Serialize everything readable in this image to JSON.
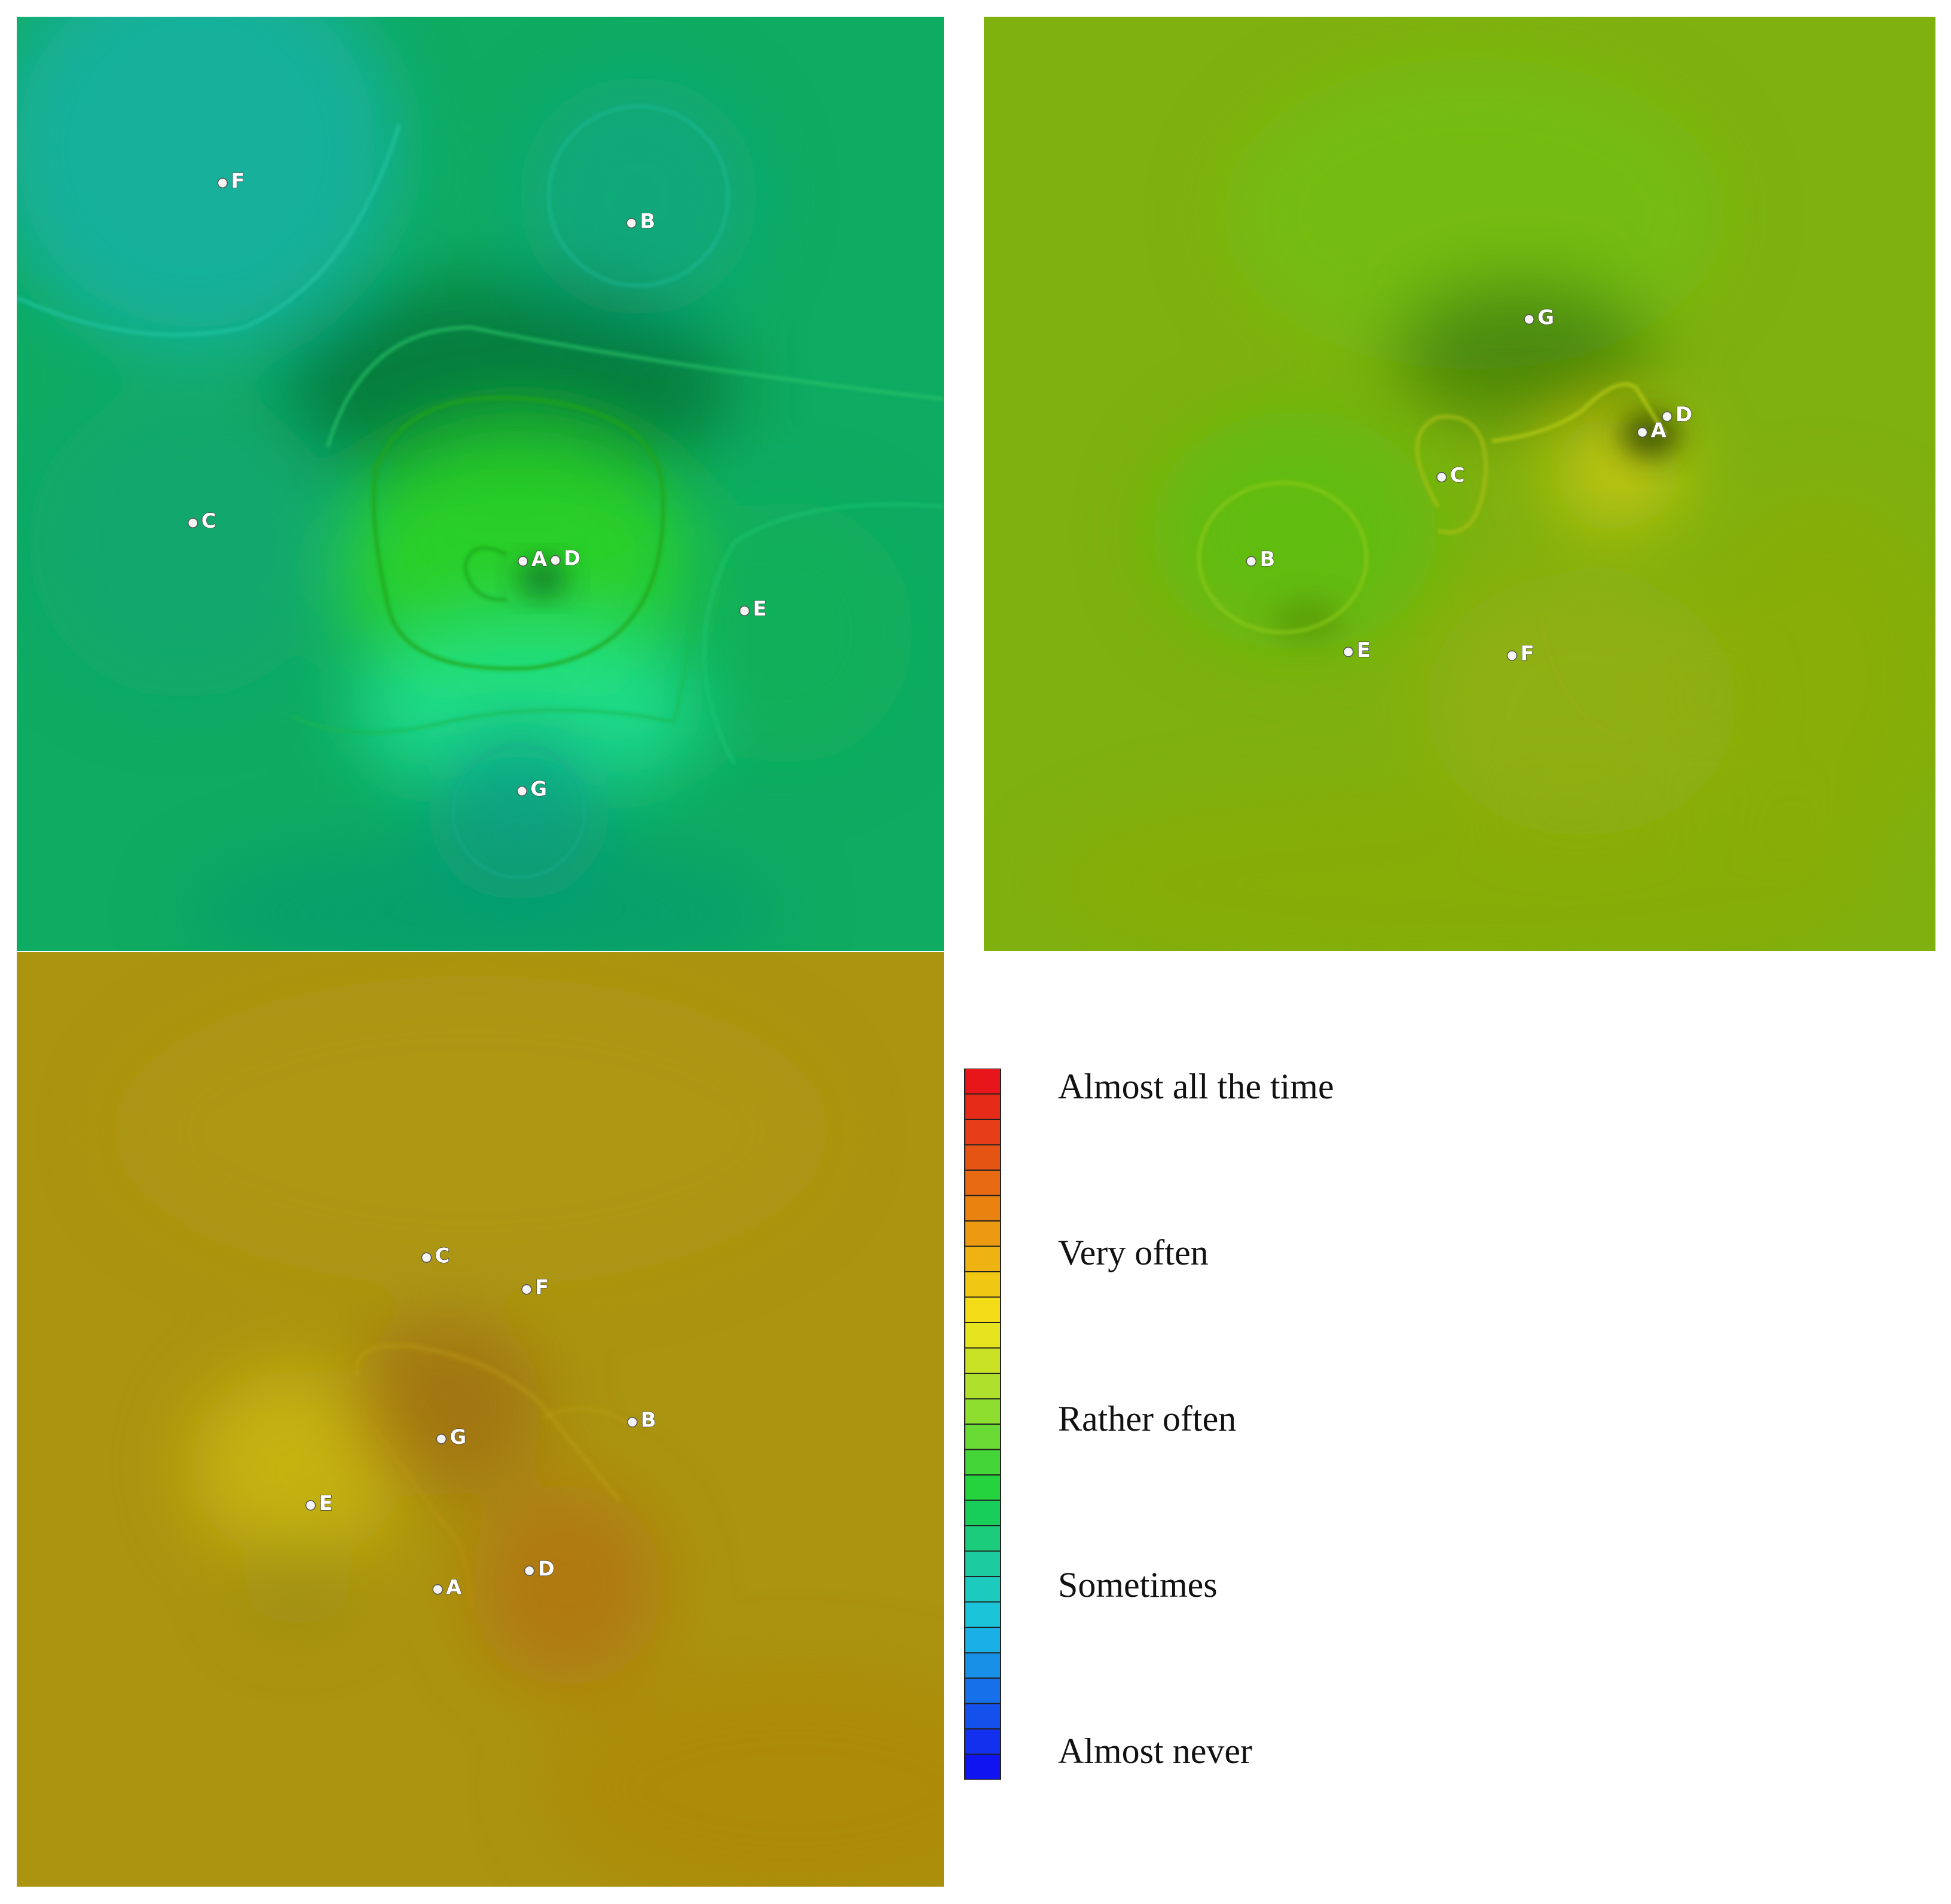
{
  "chart_data": [
    {
      "type": "heatmap",
      "colorscale": {
        "levels": [
          "Almost all the time",
          "Very often",
          "Rather often",
          "Sometimes",
          "Almost never"
        ],
        "colors_top_to_bottom": [
          "#e8161a",
          "#e62a18",
          "#e63e16",
          "#e65414",
          "#e86a12",
          "#ea8210",
          "#ec9a10",
          "#eeb212",
          "#f0c814",
          "#f2dc18",
          "#e6e41e",
          "#cae226",
          "#aee02c",
          "#8ede30",
          "#6ada34",
          "#44d638",
          "#24d23e",
          "#18ce5a",
          "#1acc7c",
          "#1ccc9e",
          "#1ccabe",
          "#1cc4da",
          "#1ab0e6",
          "#1890e8",
          "#1670ea",
          "#1450ec",
          "#1230ee",
          "#1014f0"
        ]
      },
      "panels": [
        {
          "id": "panel-1",
          "background": "#0eab62",
          "points": [
            {
              "label": "F",
              "x": 0.222,
              "y": 0.178
            },
            {
              "label": "B",
              "x": 0.663,
              "y": 0.221
            },
            {
              "label": "C",
              "x": 0.19,
              "y": 0.542
            },
            {
              "label": "A",
              "x": 0.546,
              "y": 0.583
            },
            {
              "label": "D",
              "x": 0.581,
              "y": 0.582
            },
            {
              "label": "E",
              "x": 0.785,
              "y": 0.636
            },
            {
              "label": "G",
              "x": 0.545,
              "y": 0.829
            }
          ]
        },
        {
          "id": "panel-2",
          "background": "#7fb10f",
          "points": [
            {
              "label": "G",
              "x": 0.573,
              "y": 0.324
            },
            {
              "label": "D",
              "x": 0.718,
              "y": 0.428
            },
            {
              "label": "A",
              "x": 0.692,
              "y": 0.445
            },
            {
              "label": "C",
              "x": 0.481,
              "y": 0.493
            },
            {
              "label": "B",
              "x": 0.281,
              "y": 0.583
            },
            {
              "label": "E",
              "x": 0.383,
              "y": 0.68
            },
            {
              "label": "F",
              "x": 0.555,
              "y": 0.684
            }
          ]
        },
        {
          "id": "panel-3",
          "background": "#ab9410",
          "points": [
            {
              "label": "C",
              "x": 0.442,
              "y": 0.327
            },
            {
              "label": "F",
              "x": 0.55,
              "y": 0.361
            },
            {
              "label": "B",
              "x": 0.664,
              "y": 0.503
            },
            {
              "label": "G",
              "x": 0.458,
              "y": 0.521
            },
            {
              "label": "E",
              "x": 0.317,
              "y": 0.592
            },
            {
              "label": "D",
              "x": 0.553,
              "y": 0.662
            },
            {
              "label": "A",
              "x": 0.454,
              "y": 0.682
            }
          ]
        }
      ]
    }
  ]
}
